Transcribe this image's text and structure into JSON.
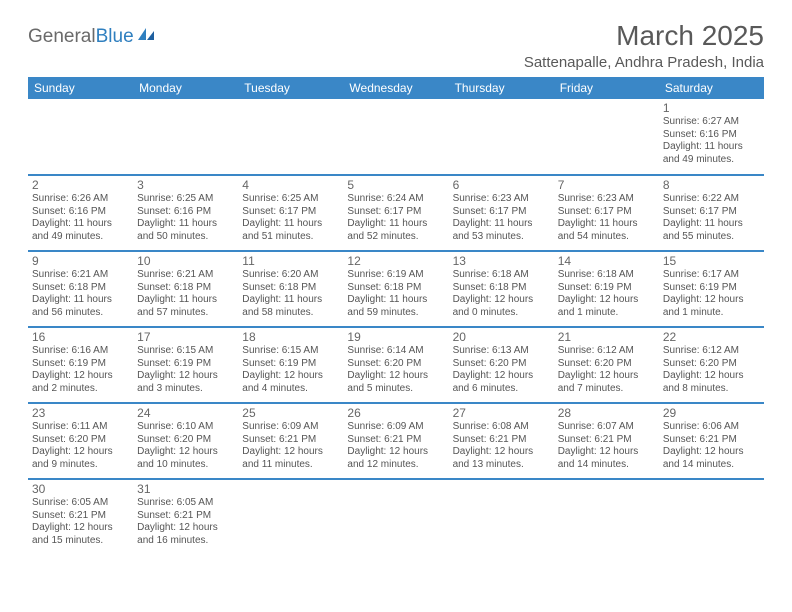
{
  "logo": {
    "text_a": "General",
    "text_b": "Blue"
  },
  "title": "March 2025",
  "location": "Sattenapalle, Andhra Pradesh, India",
  "colors": {
    "header_bg": "#3a87c7",
    "header_text": "#ffffff",
    "row_divider": "#b8b8b8",
    "row_bottom": "#3a87c7",
    "text": "#4a4a4a",
    "title_text": "#595959"
  },
  "day_names": [
    "Sunday",
    "Monday",
    "Tuesday",
    "Wednesday",
    "Thursday",
    "Friday",
    "Saturday"
  ],
  "weeks": [
    [
      null,
      null,
      null,
      null,
      null,
      null,
      {
        "n": "1",
        "sr": "Sunrise: 6:27 AM",
        "ss": "Sunset: 6:16 PM",
        "dl": "Daylight: 11 hours and 49 minutes."
      }
    ],
    [
      {
        "n": "2",
        "sr": "Sunrise: 6:26 AM",
        "ss": "Sunset: 6:16 PM",
        "dl": "Daylight: 11 hours and 49 minutes."
      },
      {
        "n": "3",
        "sr": "Sunrise: 6:25 AM",
        "ss": "Sunset: 6:16 PM",
        "dl": "Daylight: 11 hours and 50 minutes."
      },
      {
        "n": "4",
        "sr": "Sunrise: 6:25 AM",
        "ss": "Sunset: 6:17 PM",
        "dl": "Daylight: 11 hours and 51 minutes."
      },
      {
        "n": "5",
        "sr": "Sunrise: 6:24 AM",
        "ss": "Sunset: 6:17 PM",
        "dl": "Daylight: 11 hours and 52 minutes."
      },
      {
        "n": "6",
        "sr": "Sunrise: 6:23 AM",
        "ss": "Sunset: 6:17 PM",
        "dl": "Daylight: 11 hours and 53 minutes."
      },
      {
        "n": "7",
        "sr": "Sunrise: 6:23 AM",
        "ss": "Sunset: 6:17 PM",
        "dl": "Daylight: 11 hours and 54 minutes."
      },
      {
        "n": "8",
        "sr": "Sunrise: 6:22 AM",
        "ss": "Sunset: 6:17 PM",
        "dl": "Daylight: 11 hours and 55 minutes."
      }
    ],
    [
      {
        "n": "9",
        "sr": "Sunrise: 6:21 AM",
        "ss": "Sunset: 6:18 PM",
        "dl": "Daylight: 11 hours and 56 minutes."
      },
      {
        "n": "10",
        "sr": "Sunrise: 6:21 AM",
        "ss": "Sunset: 6:18 PM",
        "dl": "Daylight: 11 hours and 57 minutes."
      },
      {
        "n": "11",
        "sr": "Sunrise: 6:20 AM",
        "ss": "Sunset: 6:18 PM",
        "dl": "Daylight: 11 hours and 58 minutes."
      },
      {
        "n": "12",
        "sr": "Sunrise: 6:19 AM",
        "ss": "Sunset: 6:18 PM",
        "dl": "Daylight: 11 hours and 59 minutes."
      },
      {
        "n": "13",
        "sr": "Sunrise: 6:18 AM",
        "ss": "Sunset: 6:18 PM",
        "dl": "Daylight: 12 hours and 0 minutes."
      },
      {
        "n": "14",
        "sr": "Sunrise: 6:18 AM",
        "ss": "Sunset: 6:19 PM",
        "dl": "Daylight: 12 hours and 1 minute."
      },
      {
        "n": "15",
        "sr": "Sunrise: 6:17 AM",
        "ss": "Sunset: 6:19 PM",
        "dl": "Daylight: 12 hours and 1 minute."
      }
    ],
    [
      {
        "n": "16",
        "sr": "Sunrise: 6:16 AM",
        "ss": "Sunset: 6:19 PM",
        "dl": "Daylight: 12 hours and 2 minutes."
      },
      {
        "n": "17",
        "sr": "Sunrise: 6:15 AM",
        "ss": "Sunset: 6:19 PM",
        "dl": "Daylight: 12 hours and 3 minutes."
      },
      {
        "n": "18",
        "sr": "Sunrise: 6:15 AM",
        "ss": "Sunset: 6:19 PM",
        "dl": "Daylight: 12 hours and 4 minutes."
      },
      {
        "n": "19",
        "sr": "Sunrise: 6:14 AM",
        "ss": "Sunset: 6:20 PM",
        "dl": "Daylight: 12 hours and 5 minutes."
      },
      {
        "n": "20",
        "sr": "Sunrise: 6:13 AM",
        "ss": "Sunset: 6:20 PM",
        "dl": "Daylight: 12 hours and 6 minutes."
      },
      {
        "n": "21",
        "sr": "Sunrise: 6:12 AM",
        "ss": "Sunset: 6:20 PM",
        "dl": "Daylight: 12 hours and 7 minutes."
      },
      {
        "n": "22",
        "sr": "Sunrise: 6:12 AM",
        "ss": "Sunset: 6:20 PM",
        "dl": "Daylight: 12 hours and 8 minutes."
      }
    ],
    [
      {
        "n": "23",
        "sr": "Sunrise: 6:11 AM",
        "ss": "Sunset: 6:20 PM",
        "dl": "Daylight: 12 hours and 9 minutes."
      },
      {
        "n": "24",
        "sr": "Sunrise: 6:10 AM",
        "ss": "Sunset: 6:20 PM",
        "dl": "Daylight: 12 hours and 10 minutes."
      },
      {
        "n": "25",
        "sr": "Sunrise: 6:09 AM",
        "ss": "Sunset: 6:21 PM",
        "dl": "Daylight: 12 hours and 11 minutes."
      },
      {
        "n": "26",
        "sr": "Sunrise: 6:09 AM",
        "ss": "Sunset: 6:21 PM",
        "dl": "Daylight: 12 hours and 12 minutes."
      },
      {
        "n": "27",
        "sr": "Sunrise: 6:08 AM",
        "ss": "Sunset: 6:21 PM",
        "dl": "Daylight: 12 hours and 13 minutes."
      },
      {
        "n": "28",
        "sr": "Sunrise: 6:07 AM",
        "ss": "Sunset: 6:21 PM",
        "dl": "Daylight: 12 hours and 14 minutes."
      },
      {
        "n": "29",
        "sr": "Sunrise: 6:06 AM",
        "ss": "Sunset: 6:21 PM",
        "dl": "Daylight: 12 hours and 14 minutes."
      }
    ],
    [
      {
        "n": "30",
        "sr": "Sunrise: 6:05 AM",
        "ss": "Sunset: 6:21 PM",
        "dl": "Daylight: 12 hours and 15 minutes."
      },
      {
        "n": "31",
        "sr": "Sunrise: 6:05 AM",
        "ss": "Sunset: 6:21 PM",
        "dl": "Daylight: 12 hours and 16 minutes."
      },
      null,
      null,
      null,
      null,
      null
    ]
  ]
}
